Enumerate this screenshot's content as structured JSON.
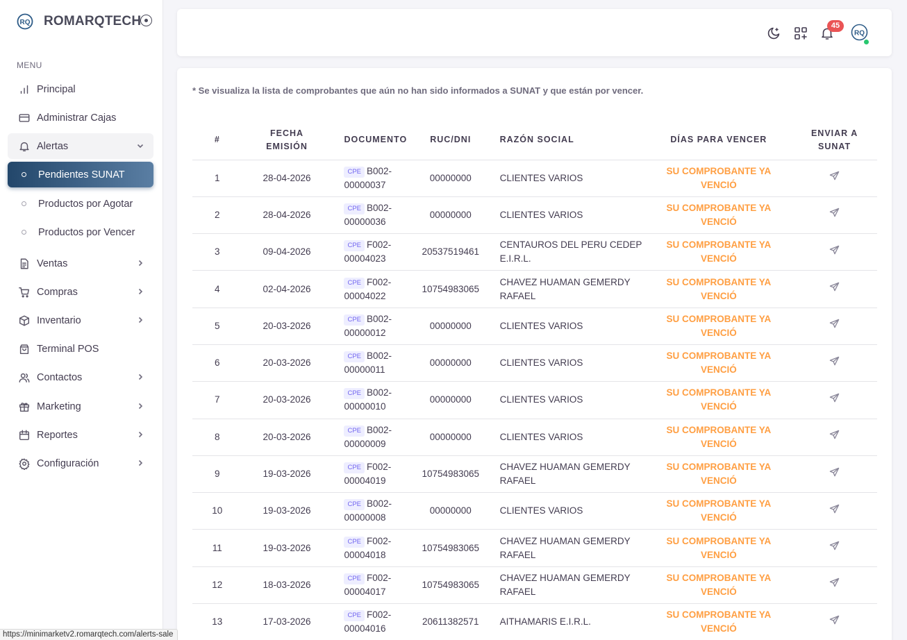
{
  "brand": {
    "name": "ROMARQTECH",
    "logo_text": "RQ"
  },
  "sidebar": {
    "menu_header": "MENU",
    "items": [
      {
        "label": "Principal",
        "icon": "chart-bars-icon"
      },
      {
        "label": "Administrar Cajas",
        "icon": "cash-register-icon"
      },
      {
        "label": "Alertas",
        "icon": "bell-icon",
        "expanded": true
      },
      {
        "label": "Pendientes SUNAT",
        "sub": true,
        "active": true
      },
      {
        "label": "Productos por Agotar",
        "sub": true
      },
      {
        "label": "Productos por Vencer",
        "sub": true
      },
      {
        "label": "Ventas",
        "icon": "document-icon"
      },
      {
        "label": "Compras",
        "icon": "cart-icon"
      },
      {
        "label": "Inventario",
        "icon": "box-icon"
      },
      {
        "label": "Terminal POS",
        "icon": "shopping-bag-icon"
      },
      {
        "label": "Contactos",
        "icon": "users-icon"
      },
      {
        "label": "Marketing",
        "icon": "gift-icon"
      },
      {
        "label": "Reportes",
        "icon": "calendar-icon"
      },
      {
        "label": "Configuración",
        "icon": "gear-icon"
      }
    ]
  },
  "navbar": {
    "notifications_count": "45",
    "avatar_text": "RQ"
  },
  "notice": "* Se visualiza la lista de comprobantes que aún no han sido informados a SUNAT y que están por vencer.",
  "table": {
    "headers": {
      "num": "#",
      "fecha_1": "FECHA",
      "fecha_2": "EMISIÓN",
      "documento": "DOCUMENTO",
      "ruc": "RUC/DNI",
      "razon": "RAZÓN SOCIAL",
      "dias": "DÍAS PARA VENCER",
      "enviar_1": "ENVIAR A",
      "enviar_2": "SUNAT"
    },
    "tag": "CPE",
    "status": "SU COMPROBANTE YA VENCIÓ",
    "rows": [
      {
        "num": "1",
        "fecha": "28-04-2026",
        "doc_serie": "B002-",
        "doc_num": "00000037",
        "ruc": "00000000",
        "razon": "CLIENTES VARIOS"
      },
      {
        "num": "2",
        "fecha": "28-04-2026",
        "doc_serie": "B002-",
        "doc_num": "00000036",
        "ruc": "00000000",
        "razon": "CLIENTES VARIOS"
      },
      {
        "num": "3",
        "fecha": "09-04-2026",
        "doc_serie": "F002-",
        "doc_num": "00004023",
        "ruc": "20537519461",
        "razon": "CENTAUROS DEL PERU CEDEP E.I.R.L."
      },
      {
        "num": "4",
        "fecha": "02-04-2026",
        "doc_serie": "F002-",
        "doc_num": "00004022",
        "ruc": "10754983065",
        "razon": "CHAVEZ HUAMAN GEMERDY RAFAEL"
      },
      {
        "num": "5",
        "fecha": "20-03-2026",
        "doc_serie": "B002-",
        "doc_num": "00000012",
        "ruc": "00000000",
        "razon": "CLIENTES VARIOS"
      },
      {
        "num": "6",
        "fecha": "20-03-2026",
        "doc_serie": "B002-",
        "doc_num": "00000011",
        "ruc": "00000000",
        "razon": "CLIENTES VARIOS"
      },
      {
        "num": "7",
        "fecha": "20-03-2026",
        "doc_serie": "B002-",
        "doc_num": "00000010",
        "ruc": "00000000",
        "razon": "CLIENTES VARIOS"
      },
      {
        "num": "8",
        "fecha": "20-03-2026",
        "doc_serie": "B002-",
        "doc_num": "00000009",
        "ruc": "00000000",
        "razon": "CLIENTES VARIOS"
      },
      {
        "num": "9",
        "fecha": "19-03-2026",
        "doc_serie": "F002-",
        "doc_num": "00004019",
        "ruc": "10754983065",
        "razon": "CHAVEZ HUAMAN GEMERDY RAFAEL"
      },
      {
        "num": "10",
        "fecha": "19-03-2026",
        "doc_serie": "B002-",
        "doc_num": "00000008",
        "ruc": "00000000",
        "razon": "CLIENTES VARIOS"
      },
      {
        "num": "11",
        "fecha": "19-03-2026",
        "doc_serie": "F002-",
        "doc_num": "00004018",
        "ruc": "10754983065",
        "razon": "CHAVEZ HUAMAN GEMERDY RAFAEL"
      },
      {
        "num": "12",
        "fecha": "18-03-2026",
        "doc_serie": "F002-",
        "doc_num": "00004017",
        "ruc": "10754983065",
        "razon": "CHAVEZ HUAMAN GEMERDY RAFAEL"
      },
      {
        "num": "13",
        "fecha": "17-03-2026",
        "doc_serie": "F002-",
        "doc_num": "00004016",
        "ruc": "20611382571",
        "razon": "AITHAMARIS E.I.R.L."
      }
    ]
  },
  "status_bar": {
    "url": "https://minimarketv2.romarqtech.com/alerts-sale"
  },
  "colors": {
    "accent": "#23476b",
    "warning": "#ff9f43",
    "badge": "#ea5455",
    "online": "#28c76f",
    "cpe": "#7367f0"
  }
}
